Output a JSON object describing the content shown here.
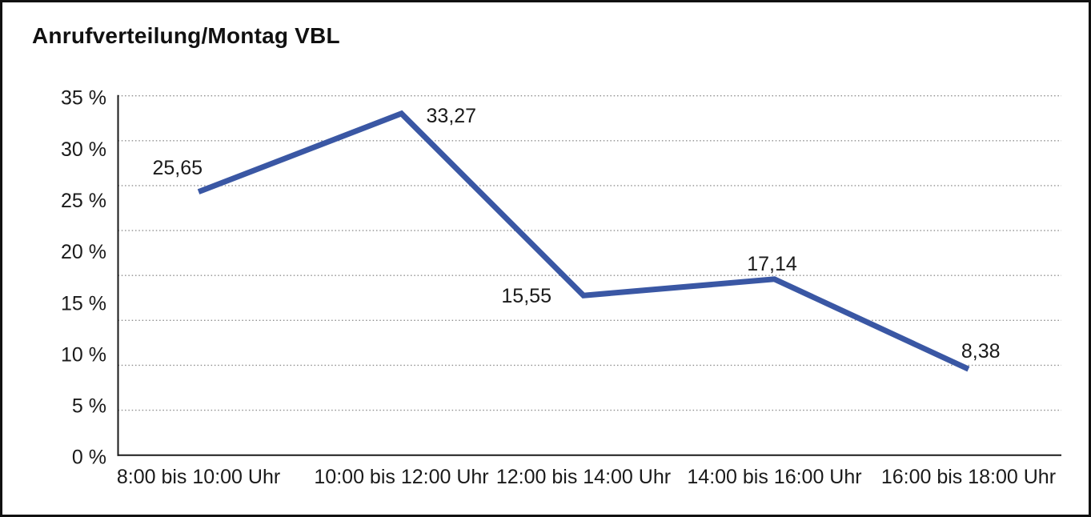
{
  "chart_data": {
    "type": "line",
    "title": "Anrufverteilung/Montag VBL",
    "categories": [
      "8:00 bis 10:00 Uhr",
      "10:00 bis 12:00 Uhr",
      "12:00 bis 14:00 Uhr",
      "14:00 bis 16:00 Uhr",
      "16:00 bis 18:00 Uhr"
    ],
    "series": [
      {
        "values": [
          25.65,
          33.27,
          15.55,
          17.14,
          8.38
        ],
        "point_labels": [
          "25,65",
          "33,27",
          "15,55",
          "17,14",
          "8,38"
        ]
      }
    ],
    "xlabel": "",
    "ylabel": "",
    "ylim": [
      0,
      35
    ],
    "y_tick_values": [
      0,
      5,
      10,
      15,
      20,
      25,
      30,
      35
    ],
    "y_tick_labels": [
      "0 %",
      "5 %",
      "10 %",
      "15 %",
      "20 %",
      "25 %",
      "30 %",
      "35 %"
    ],
    "grid": "horizontal dotted",
    "grid_divisions": 8,
    "legend": "none",
    "line_color": "#3A57A4",
    "axis_color": "#1a1a1a",
    "grid_color": "#8f8f8f",
    "text_color": "#1a1a1a",
    "background": "#ffffff",
    "border_color": "#111111"
  }
}
